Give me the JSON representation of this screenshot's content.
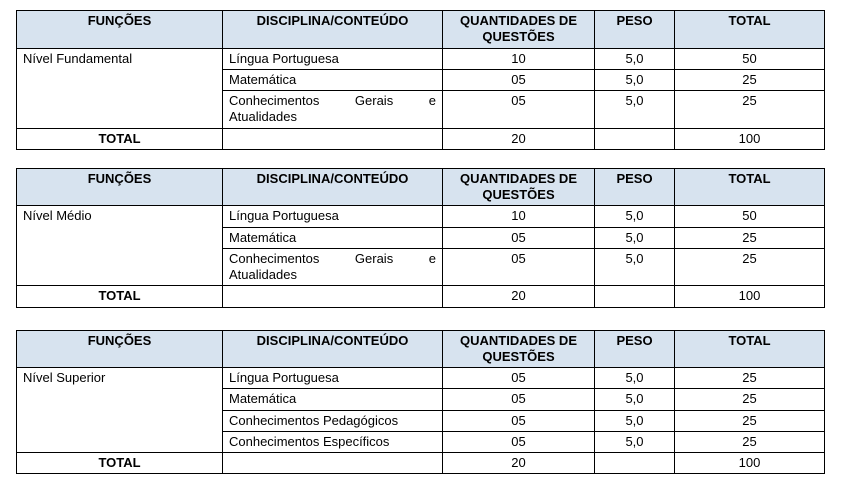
{
  "headers": {
    "funcoes": "FUNÇÕES",
    "disciplina": "DISCIPLINA/CONTEÚDO",
    "quant": "QUANTIDADES DE QUESTÕES",
    "peso": "PESO",
    "total": "TOTAL"
  },
  "table1": {
    "nivel": "Nível Fundamental",
    "rows": [
      {
        "disc": "Língua Portuguesa",
        "q": "10",
        "p": "5,0",
        "t": "50",
        "justify": false
      },
      {
        "disc": "Matemática",
        "q": "05",
        "p": "5,0",
        "t": "25",
        "justify": false
      },
      {
        "disc": "Conhecimentos Gerais e Atualidades",
        "q": "05",
        "p": "5,0",
        "t": "25",
        "justify": true
      }
    ],
    "total_label": "TOTAL",
    "total_q": "20",
    "total_t": "100"
  },
  "table2": {
    "nivel": "Nível Médio",
    "rows": [
      {
        "disc": "Língua Portuguesa",
        "q": "10",
        "p": "5,0",
        "t": "50",
        "justify": false
      },
      {
        "disc": "Matemática",
        "q": "05",
        "p": "5,0",
        "t": "25",
        "justify": false
      },
      {
        "disc": "Conhecimentos Gerais e Atualidades",
        "q": "05",
        "p": "5,0",
        "t": "25",
        "justify": true
      }
    ],
    "total_label": "TOTAL",
    "total_q": "20",
    "total_t": "100"
  },
  "table3": {
    "nivel": "Nível Superior",
    "rows": [
      {
        "disc": "Língua Portuguesa",
        "q": "05",
        "p": "5,0",
        "t": "25",
        "justify": false
      },
      {
        "disc": "Matemática",
        "q": "05",
        "p": "5,0",
        "t": "25",
        "justify": false
      },
      {
        "disc": "Conhecimentos Pedagógicos",
        "q": "05",
        "p": "5,0",
        "t": "25",
        "justify": false
      },
      {
        "disc": "Conhecimentos Específicos",
        "q": "05",
        "p": "5,0",
        "t": "25",
        "justify": false
      }
    ],
    "total_label": "TOTAL",
    "total_q": "20",
    "total_t": "100"
  },
  "extraGap3": true
}
